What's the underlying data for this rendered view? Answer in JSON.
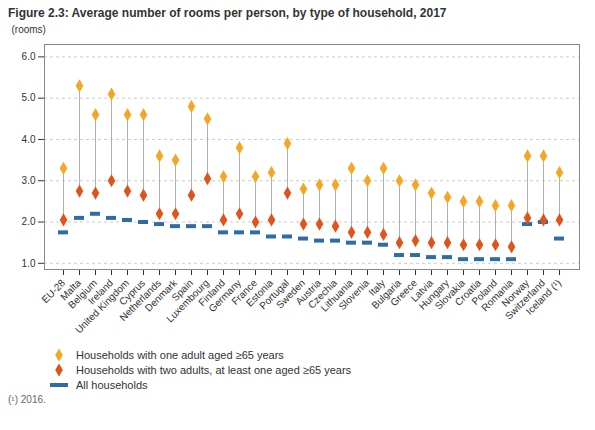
{
  "chart_data": {
    "type": "dot",
    "title": "Figure 2.3: Average number of rooms per person, by type of household, 2017",
    "y_label": "(rooms)",
    "categories": [
      "EU-28",
      "Malta",
      "Belgium",
      "Ireland",
      "United Kingdom",
      "Cyprus",
      "Netherlands",
      "Denmark",
      "Spain",
      "Luxembourg",
      "Finland",
      "Germany",
      "France",
      "Estonia",
      "Portugal",
      "Sweden",
      "Austria",
      "Czechia",
      "Lithuania",
      "Slovenia",
      "Italy",
      "Bulgaria",
      "Greece",
      "Latvia",
      "Hungary",
      "Slovakia",
      "Croatia",
      "Poland",
      "Romania",
      "Norway",
      "Switzerland",
      "Iceland (¹)"
    ],
    "series": [
      {
        "name": "Households with one adult aged ≥65 years",
        "color": "#f5a623",
        "marker": "diamond",
        "values": [
          3.3,
          5.3,
          4.6,
          5.1,
          4.6,
          4.6,
          3.6,
          3.5,
          4.8,
          4.5,
          3.1,
          3.8,
          3.1,
          3.2,
          3.9,
          2.8,
          2.9,
          2.9,
          3.3,
          3.0,
          3.3,
          3.0,
          2.9,
          2.7,
          2.6,
          2.5,
          2.5,
          2.4,
          2.4,
          3.6,
          3.6,
          3.2
        ]
      },
      {
        "name": "Households with two adults, at least one aged ≥65 years",
        "color": "#e0531a",
        "marker": "diamond",
        "values": [
          2.05,
          2.75,
          2.7,
          3.0,
          2.75,
          2.65,
          2.2,
          2.2,
          2.65,
          3.05,
          2.05,
          2.2,
          2.0,
          2.05,
          2.7,
          1.95,
          1.95,
          1.9,
          1.75,
          1.75,
          1.7,
          1.5,
          1.55,
          1.5,
          1.5,
          1.45,
          1.45,
          1.45,
          1.4,
          2.1,
          2.05,
          2.05
        ]
      },
      {
        "name": "All households",
        "color": "#2e6da4",
        "marker": "dash",
        "values": [
          1.75,
          2.1,
          2.2,
          2.1,
          2.05,
          2.0,
          1.95,
          1.9,
          1.9,
          1.9,
          1.75,
          1.75,
          1.75,
          1.65,
          1.65,
          1.6,
          1.55,
          1.55,
          1.5,
          1.5,
          1.45,
          1.2,
          1.2,
          1.15,
          1.15,
          1.1,
          1.1,
          1.1,
          1.1,
          1.95,
          2.0,
          1.6
        ]
      }
    ],
    "ylim": [
      0.85,
      6.3
    ],
    "yticks": [
      1,
      2,
      3,
      4,
      5,
      6
    ],
    "grid": true,
    "legend": "bottom",
    "annotations": [
      "(¹) 2016."
    ]
  }
}
